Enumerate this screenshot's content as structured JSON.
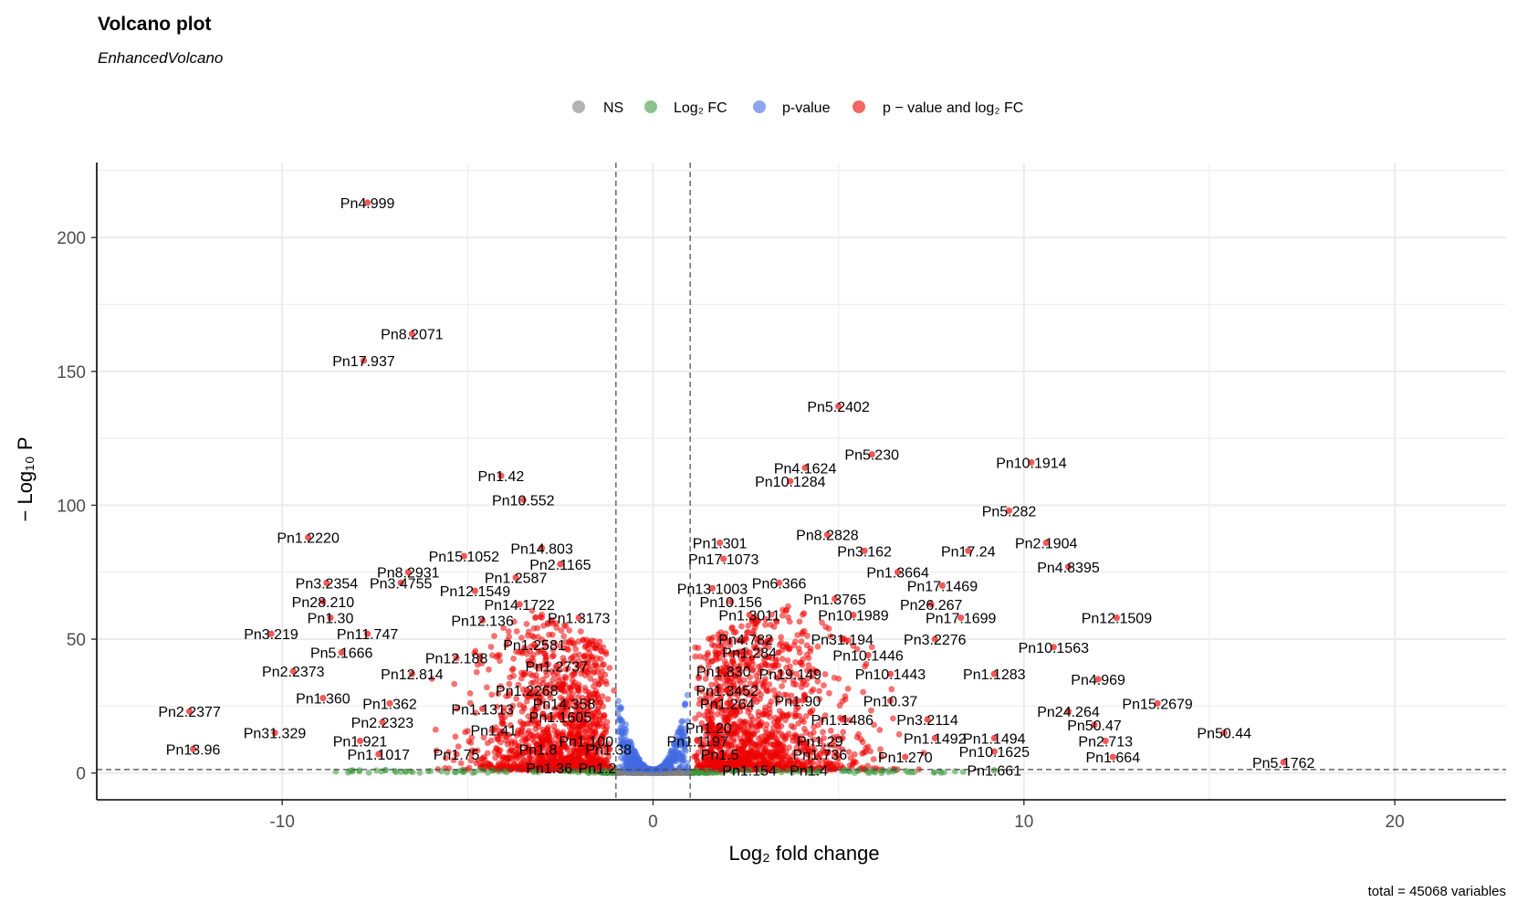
{
  "chart_data": {
    "type": "scatter",
    "title": "Volcano plot",
    "subtitle": "EnhancedVolcano",
    "caption": "total = 45068 variables",
    "xlabel": "Log₂ fold change",
    "ylabel": "− Log₁₀ P",
    "xlim": [
      -15,
      23
    ],
    "ylim": [
      -10,
      228
    ],
    "x_ticks": [
      -10,
      0,
      10,
      20
    ],
    "y_ticks": [
      0,
      50,
      100,
      150,
      200
    ],
    "fc_cutoff": 1,
    "p_cutoff_log10": 1.3,
    "grid": true,
    "legend_position": "top",
    "legend": [
      {
        "name": "NS",
        "color": "#808080"
      },
      {
        "name": "Log₂ FC",
        "color": "#3d9a3d"
      },
      {
        "name": "p-value",
        "color": "#4169e1"
      },
      {
        "name": "p − value and log₂ FC",
        "color": "#ee0000"
      }
    ],
    "labeled_points": [
      {
        "label": "Pn4.999",
        "x": -7.7,
        "y": 213
      },
      {
        "label": "Pn8.2071",
        "x": -6.5,
        "y": 164
      },
      {
        "label": "Pn17.937",
        "x": -7.8,
        "y": 154
      },
      {
        "label": "Pn5.2402",
        "x": 5.0,
        "y": 137
      },
      {
        "label": "Pn5.230",
        "x": 5.9,
        "y": 119
      },
      {
        "label": "Pn10.1914",
        "x": 10.2,
        "y": 116
      },
      {
        "label": "Pn4.1624",
        "x": 4.1,
        "y": 114
      },
      {
        "label": "Pn1.42",
        "x": -4.1,
        "y": 111
      },
      {
        "label": "Pn10.1284",
        "x": 3.7,
        "y": 109
      },
      {
        "label": "Pn10.552",
        "x": -3.5,
        "y": 102
      },
      {
        "label": "Pn5.282",
        "x": 9.6,
        "y": 98
      },
      {
        "label": "Pn8.2828",
        "x": 4.7,
        "y": 89
      },
      {
        "label": "Pn1.2220",
        "x": -9.3,
        "y": 88
      },
      {
        "label": "Pn1.301",
        "x": 1.8,
        "y": 86
      },
      {
        "label": "Pn2.1904",
        "x": 10.6,
        "y": 86
      },
      {
        "label": "Pn14.803",
        "x": -3.0,
        "y": 84
      },
      {
        "label": "Pn3.162",
        "x": 5.7,
        "y": 83
      },
      {
        "label": "Pn17.24",
        "x": 8.5,
        "y": 83
      },
      {
        "label": "Pn15.1052",
        "x": -5.1,
        "y": 81
      },
      {
        "label": "Pn17.1073",
        "x": 1.9,
        "y": 80
      },
      {
        "label": "Pn2.1165",
        "x": -2.5,
        "y": 78
      },
      {
        "label": "Pn4.8395",
        "x": 11.2,
        "y": 77
      },
      {
        "label": "Pn1.3664",
        "x": 6.6,
        "y": 75
      },
      {
        "label": "Pn8.2931",
        "x": -6.6,
        "y": 75
      },
      {
        "label": "Pn1.2587",
        "x": -3.7,
        "y": 73
      },
      {
        "label": "Pn3.2354",
        "x": -8.8,
        "y": 71
      },
      {
        "label": "Pn6.366",
        "x": 3.4,
        "y": 71
      },
      {
        "label": "Pn3.4755",
        "x": -6.8,
        "y": 71
      },
      {
        "label": "Pn17.1469",
        "x": 7.8,
        "y": 70
      },
      {
        "label": "Pn13.1003",
        "x": 1.6,
        "y": 69
      },
      {
        "label": "Pn12.1549",
        "x": -4.8,
        "y": 68
      },
      {
        "label": "Pn1.3765",
        "x": 4.9,
        "y": 65
      },
      {
        "label": "Pn28.210",
        "x": -8.9,
        "y": 64
      },
      {
        "label": "Pn10.156",
        "x": 2.1,
        "y": 64
      },
      {
        "label": "Pn14.1722",
        "x": -3.6,
        "y": 63
      },
      {
        "label": "Pn26.267",
        "x": 7.5,
        "y": 63
      },
      {
        "label": "Pn12.1509",
        "x": 12.5,
        "y": 58
      },
      {
        "label": "Pn1.30",
        "x": -8.7,
        "y": 58
      },
      {
        "label": "Pn1.3011",
        "x": 2.6,
        "y": 59
      },
      {
        "label": "Pn10.1989",
        "x": 5.4,
        "y": 59
      },
      {
        "label": "Pn17.1699",
        "x": 8.3,
        "y": 58
      },
      {
        "label": "Pn1.3173",
        "x": -2.0,
        "y": 58
      },
      {
        "label": "Pn12.136",
        "x": -4.6,
        "y": 57
      },
      {
        "label": "Pn3.219",
        "x": -10.3,
        "y": 52
      },
      {
        "label": "Pn11.747",
        "x": -7.7,
        "y": 52
      },
      {
        "label": "Pn31.194",
        "x": 5.1,
        "y": 50
      },
      {
        "label": "Pn3.2276",
        "x": 7.6,
        "y": 50
      },
      {
        "label": "Pn4.782",
        "x": 2.5,
        "y": 50
      },
      {
        "label": "Pn1.2581",
        "x": -3.2,
        "y": 48
      },
      {
        "label": "Pn10.1563",
        "x": 10.8,
        "y": 47
      },
      {
        "label": "Pn1.284",
        "x": 2.6,
        "y": 45
      },
      {
        "label": "Pn5.1666",
        "x": -8.4,
        "y": 45
      },
      {
        "label": "Pn10.1446",
        "x": 5.8,
        "y": 44
      },
      {
        "label": "Pn12.188",
        "x": -5.3,
        "y": 43
      },
      {
        "label": "Pn1.2737",
        "x": -2.6,
        "y": 40
      },
      {
        "label": "Pn2.2373",
        "x": -9.7,
        "y": 38
      },
      {
        "label": "Pn1.830",
        "x": 1.9,
        "y": 38
      },
      {
        "label": "Pn19.149",
        "x": 3.7,
        "y": 37
      },
      {
        "label": "Pn1.1283",
        "x": 9.2,
        "y": 37
      },
      {
        "label": "Pn10.1443",
        "x": 6.4,
        "y": 37
      },
      {
        "label": "Pn12.814",
        "x": -6.5,
        "y": 37
      },
      {
        "label": "Pn4.969",
        "x": 12.0,
        "y": 35
      },
      {
        "label": "Pn1.3452",
        "x": 2.0,
        "y": 31
      },
      {
        "label": "Pn1.2268",
        "x": -3.4,
        "y": 31
      },
      {
        "label": "Pn1.90",
        "x": 3.9,
        "y": 27
      },
      {
        "label": "Pn10.37",
        "x": 6.4,
        "y": 27
      },
      {
        "label": "Pn1.360",
        "x": -8.9,
        "y": 28
      },
      {
        "label": "Pn1.362",
        "x": -7.1,
        "y": 26
      },
      {
        "label": "Pn1.264",
        "x": 2.0,
        "y": 26
      },
      {
        "label": "Pn14.358",
        "x": -2.4,
        "y": 26
      },
      {
        "label": "Pn15.2679",
        "x": 13.6,
        "y": 26
      },
      {
        "label": "Pn1.1313",
        "x": -4.6,
        "y": 24
      },
      {
        "label": "Pn24.264",
        "x": 11.2,
        "y": 23
      },
      {
        "label": "Pn2.2377",
        "x": -12.5,
        "y": 23
      },
      {
        "label": "Pn1.1605",
        "x": -2.5,
        "y": 21
      },
      {
        "label": "Pn1.1486",
        "x": 5.1,
        "y": 20
      },
      {
        "label": "Pn3.2114",
        "x": 7.4,
        "y": 20
      },
      {
        "label": "Pn2.2323",
        "x": -7.3,
        "y": 19
      },
      {
        "label": "Pn50.47",
        "x": 11.9,
        "y": 18
      },
      {
        "label": "Pn1.20",
        "x": 1.5,
        "y": 17
      },
      {
        "label": "Pn1.41",
        "x": -4.3,
        "y": 16
      },
      {
        "label": "Pn31.329",
        "x": -10.2,
        "y": 15
      },
      {
        "label": "Pn50.44",
        "x": 15.4,
        "y": 15
      },
      {
        "label": "Pn1.1494",
        "x": 9.2,
        "y": 13
      },
      {
        "label": "Pn1.1492",
        "x": 7.6,
        "y": 13
      },
      {
        "label": "Pn1.1197",
        "x": 1.2,
        "y": 12
      },
      {
        "label": "Pn1.921",
        "x": -7.9,
        "y": 12
      },
      {
        "label": "Pn1.29",
        "x": 4.5,
        "y": 12
      },
      {
        "label": "Pn2.713",
        "x": 12.2,
        "y": 12
      },
      {
        "label": "Pn1.100",
        "x": -1.8,
        "y": 12
      },
      {
        "label": "Pn13.96",
        "x": -12.4,
        "y": 9
      },
      {
        "label": "Pn1.38",
        "x": -1.2,
        "y": 9
      },
      {
        "label": "Pn1.8",
        "x": -3.1,
        "y": 9
      },
      {
        "label": "Pn10.1625",
        "x": 9.2,
        "y": 8
      },
      {
        "label": "Pn1.1017",
        "x": -7.4,
        "y": 7
      },
      {
        "label": "Pn1.75",
        "x": -5.3,
        "y": 7
      },
      {
        "label": "Pn1.5",
        "x": 1.8,
        "y": 7
      },
      {
        "label": "Pn1.736",
        "x": 4.5,
        "y": 7
      },
      {
        "label": "Pn1.270",
        "x": 6.8,
        "y": 6
      },
      {
        "label": "Pn1.664",
        "x": 12.4,
        "y": 6
      },
      {
        "label": "Pn5.1762",
        "x": 17.0,
        "y": 4
      },
      {
        "label": "Pn1.36",
        "x": -2.8,
        "y": 2
      },
      {
        "label": "Pn1.2",
        "x": -1.5,
        "y": 2
      },
      {
        "label": "Pn1.154",
        "x": 2.6,
        "y": 1
      },
      {
        "label": "Pn1.4",
        "x": 4.2,
        "y": 1
      },
      {
        "label": "Pn1.661",
        "x": 9.2,
        "y": 1
      }
    ]
  }
}
